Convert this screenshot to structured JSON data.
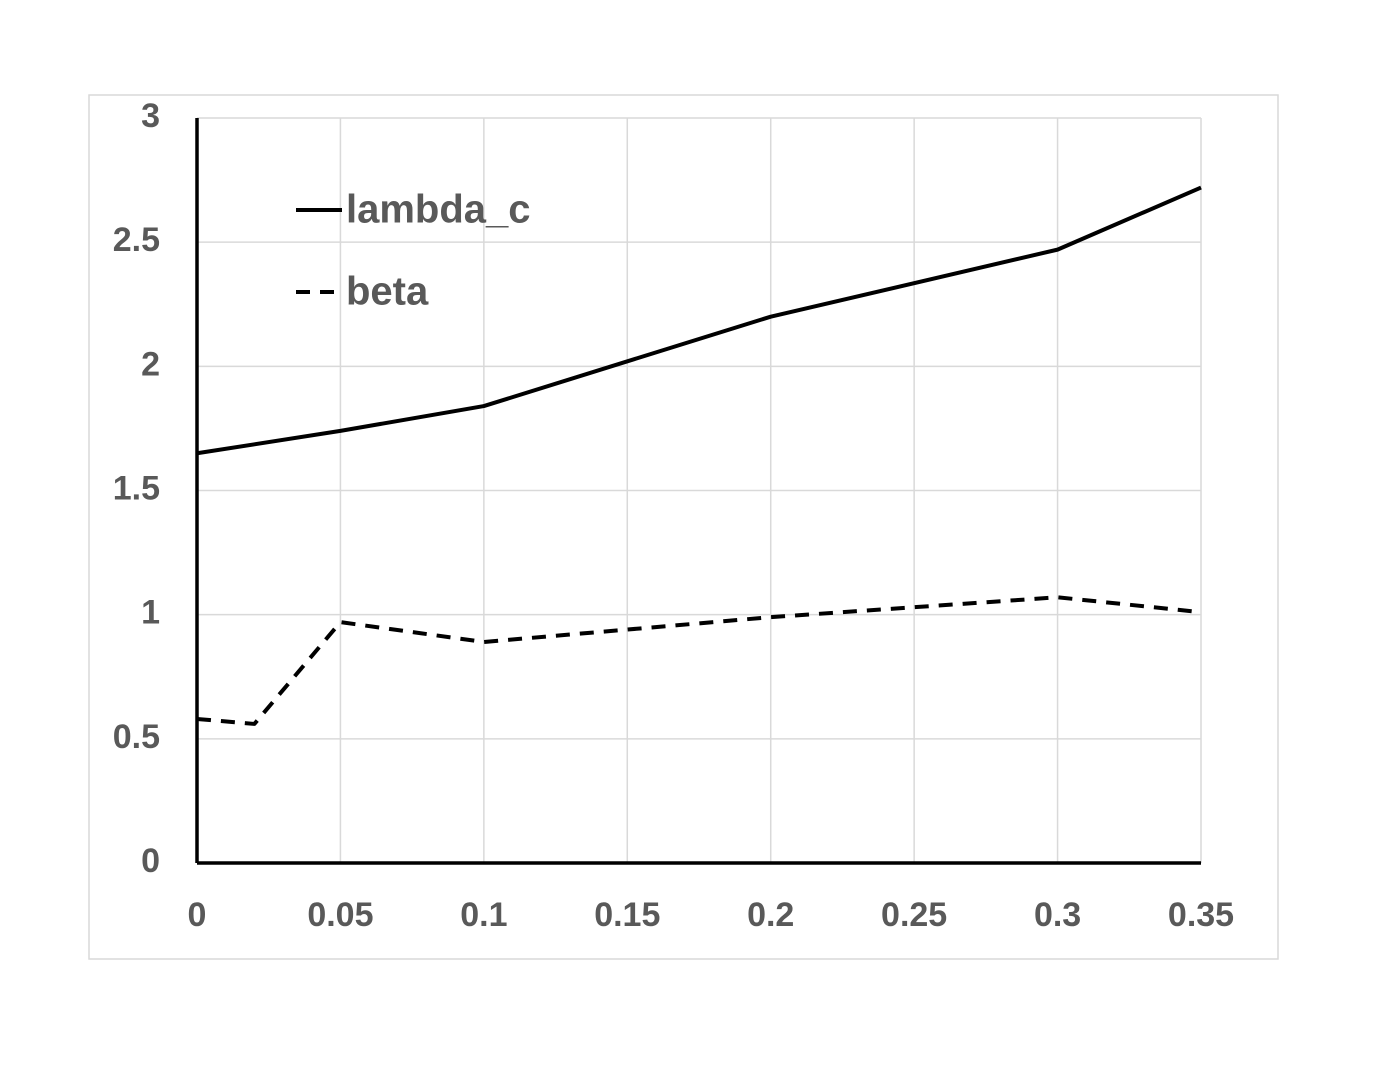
{
  "chart_data": {
    "type": "line",
    "series": [
      {
        "name": "lambda_c",
        "color": "#000000",
        "line_style": "solid",
        "x": [
          0,
          0.05,
          0.1,
          0.2,
          0.3,
          0.35
        ],
        "values": [
          1.65,
          1.74,
          1.84,
          2.2,
          2.47,
          2.72
        ]
      },
      {
        "name": "beta",
        "color": "#000000",
        "line_style": "dashed",
        "x": [
          0,
          0.02,
          0.05,
          0.1,
          0.2,
          0.3,
          0.35
        ],
        "values": [
          0.58,
          0.56,
          0.97,
          0.89,
          0.99,
          1.07,
          1.01
        ]
      }
    ],
    "xlim": [
      0,
      0.35
    ],
    "xticks": [
      0,
      0.05,
      0.1,
      0.15,
      0.2,
      0.25,
      0.3,
      0.35
    ],
    "ylim": [
      0,
      3
    ],
    "yticks": [
      0,
      0.5,
      1,
      1.5,
      2,
      2.5,
      3
    ],
    "grid": true,
    "legend": "upper-left"
  }
}
